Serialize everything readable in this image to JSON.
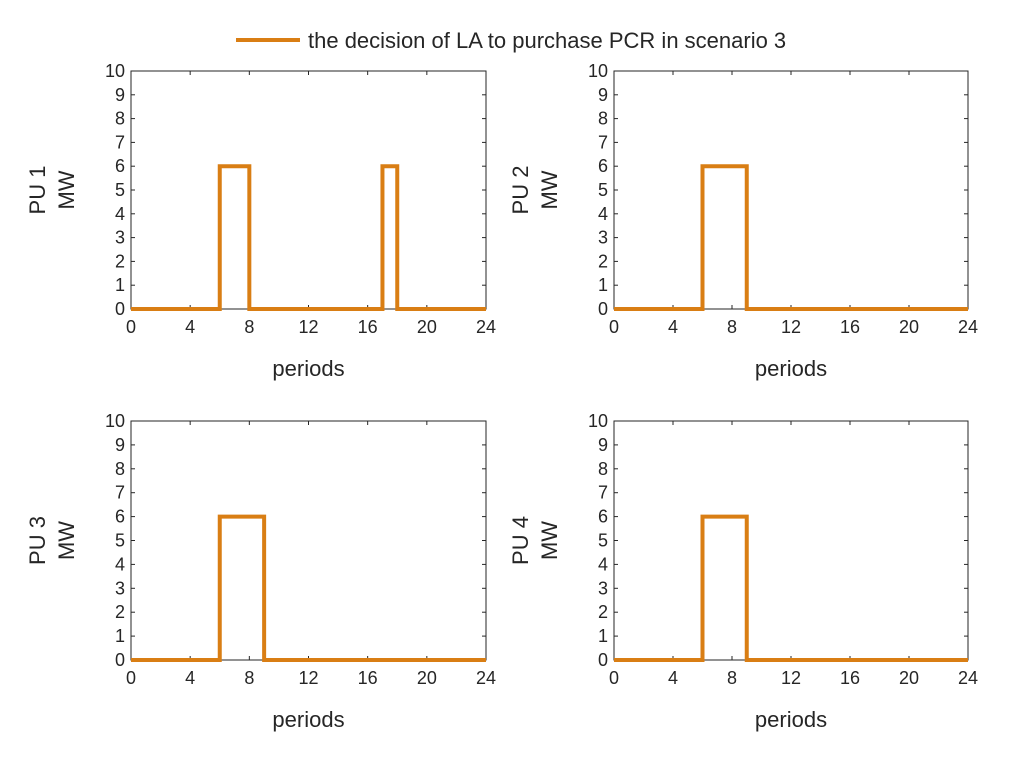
{
  "legend": {
    "label": "the decision of LA to purchase PCR in scenario 3",
    "color": "#D97E14"
  },
  "chart_data": [
    {
      "type": "line",
      "line_shape": "step",
      "panel_title": "PU 1",
      "ylabel": "MW",
      "xlabel": "periods",
      "xlim": [
        0,
        24
      ],
      "ylim": [
        0,
        10
      ],
      "xticks": [
        0,
        4,
        8,
        12,
        16,
        20,
        24
      ],
      "yticks": [
        0,
        1,
        2,
        3,
        4,
        5,
        6,
        7,
        8,
        9,
        10
      ],
      "series": [
        {
          "name": "the decision of LA to purchase PCR in scenario 3",
          "x": [
            0,
            6,
            6,
            8,
            8,
            17,
            17,
            18,
            18,
            24
          ],
          "y": [
            0,
            0,
            6,
            6,
            0,
            0,
            6,
            6,
            0,
            0
          ]
        }
      ]
    },
    {
      "type": "line",
      "line_shape": "step",
      "panel_title": "PU 2",
      "ylabel": "MW",
      "xlabel": "periods",
      "xlim": [
        0,
        24
      ],
      "ylim": [
        0,
        10
      ],
      "xticks": [
        0,
        4,
        8,
        12,
        16,
        20,
        24
      ],
      "yticks": [
        0,
        1,
        2,
        3,
        4,
        5,
        6,
        7,
        8,
        9,
        10
      ],
      "series": [
        {
          "name": "the decision of LA to purchase PCR in scenario 3",
          "x": [
            0,
            6,
            6,
            9,
            9,
            24
          ],
          "y": [
            0,
            0,
            6,
            6,
            0,
            0
          ]
        }
      ]
    },
    {
      "type": "line",
      "line_shape": "step",
      "panel_title": "PU 3",
      "ylabel": "MW",
      "xlabel": "periods",
      "xlim": [
        0,
        24
      ],
      "ylim": [
        0,
        10
      ],
      "xticks": [
        0,
        4,
        8,
        12,
        16,
        20,
        24
      ],
      "yticks": [
        0,
        1,
        2,
        3,
        4,
        5,
        6,
        7,
        8,
        9,
        10
      ],
      "series": [
        {
          "name": "the decision of LA to purchase PCR in scenario 3",
          "x": [
            0,
            6,
            6,
            9,
            9,
            24
          ],
          "y": [
            0,
            0,
            6,
            6,
            0,
            0
          ]
        }
      ]
    },
    {
      "type": "line",
      "line_shape": "step",
      "panel_title": "PU 4",
      "ylabel": "MW",
      "xlabel": "periods",
      "xlim": [
        0,
        24
      ],
      "ylim": [
        0,
        10
      ],
      "xticks": [
        0,
        4,
        8,
        12,
        16,
        20,
        24
      ],
      "yticks": [
        0,
        1,
        2,
        3,
        4,
        5,
        6,
        7,
        8,
        9,
        10
      ],
      "series": [
        {
          "name": "the decision of LA to purchase PCR in scenario 3",
          "x": [
            0,
            6,
            6,
            9,
            9,
            24
          ],
          "y": [
            0,
            0,
            6,
            6,
            0,
            0
          ]
        }
      ]
    }
  ]
}
